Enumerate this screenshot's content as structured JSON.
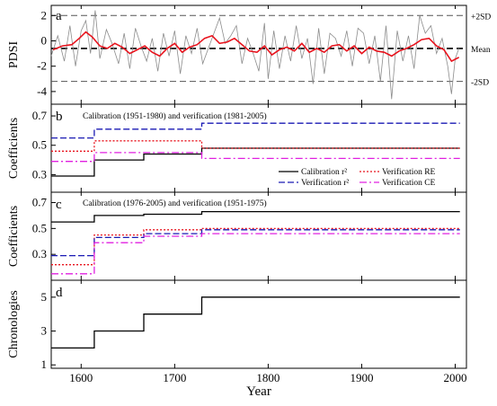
{
  "figure": {
    "xlabel": "Year",
    "x_ticks": [
      1600,
      1700,
      1800,
      1900,
      2000
    ]
  },
  "chart_data": [
    {
      "panel": "a",
      "type": "line",
      "ylabel": "PDSI",
      "ylim": [
        -5,
        2.8
      ],
      "y_ticks": [
        -4,
        -2,
        0,
        2
      ],
      "xlim": [
        1568,
        2012
      ],
      "grid": false,
      "reference_lines": [
        {
          "label": "+2SD",
          "value": 2.0
        },
        {
          "label": "Mean",
          "value": -0.6
        },
        {
          "label": "-2SD",
          "value": -3.2
        }
      ],
      "series": [
        {
          "name": "",
          "color": "#8c8c8c",
          "kind": "annual",
          "x": [
            1568,
            1575,
            1582,
            1588,
            1594,
            1600,
            1605,
            1610,
            1615,
            1620,
            1627,
            1633,
            1640,
            1646,
            1652,
            1658,
            1664,
            1670,
            1676,
            1682,
            1688,
            1694,
            1700,
            1706,
            1712,
            1718,
            1724,
            1730,
            1736,
            1742,
            1748,
            1754,
            1760,
            1766,
            1772,
            1778,
            1784,
            1790,
            1796,
            1800,
            1806,
            1812,
            1818,
            1824,
            1830,
            1836,
            1842,
            1848,
            1854,
            1860,
            1866,
            1872,
            1878,
            1884,
            1890,
            1896,
            1902,
            1908,
            1914,
            1920,
            1926,
            1932,
            1938,
            1944,
            1950,
            1956,
            1962,
            1968,
            1974,
            1980,
            1986,
            1992,
            1996,
            2000,
            2004
          ],
          "y": [
            -1.2,
            0.4,
            -1.6,
            1.2,
            -2.0,
            0.8,
            1.6,
            -1.0,
            2.4,
            -1.4,
            0.9,
            -0.2,
            -1.8,
            0.6,
            -2.2,
            1.0,
            -0.4,
            -1.6,
            0.2,
            -2.4,
            0.6,
            -1.2,
            0.8,
            -2.6,
            0.4,
            -1.0,
            1.0,
            -1.8,
            -0.6,
            0.6,
            1.8,
            -0.2,
            0.4,
            1.2,
            -1.8,
            0.2,
            -1.0,
            -2.4,
            1.4,
            -3.0,
            0.8,
            -2.2,
            0.4,
            -1.6,
            1.2,
            -1.4,
            0.2,
            -3.4,
            1.0,
            -2.6,
            0.6,
            0.2,
            -1.2,
            0.8,
            -2.0,
            1.0,
            0.6,
            -1.8,
            0.4,
            -3.2,
            1.2,
            -4.6,
            0.8,
            -1.6,
            0.4,
            -2.2,
            2.0,
            0.6,
            1.2,
            -1.0,
            0.2,
            -2.0,
            -4.2,
            -1.4,
            -0.6
          ]
        },
        {
          "name": "",
          "color": "#e8141e",
          "kind": "smoothed",
          "x": [
            1570,
            1580,
            1590,
            1598,
            1605,
            1612,
            1620,
            1628,
            1636,
            1644,
            1652,
            1660,
            1668,
            1676,
            1684,
            1692,
            1700,
            1708,
            1716,
            1724,
            1732,
            1740,
            1748,
            1756,
            1764,
            1772,
            1780,
            1788,
            1796,
            1804,
            1812,
            1820,
            1828,
            1836,
            1844,
            1852,
            1860,
            1868,
            1876,
            1884,
            1892,
            1900,
            1908,
            1916,
            1924,
            1932,
            1940,
            1948,
            1956,
            1964,
            1972,
            1980,
            1988,
            1996,
            2004
          ],
          "y": [
            -0.7,
            -0.4,
            -0.3,
            0.2,
            0.7,
            0.3,
            -0.4,
            -0.6,
            -0.2,
            -0.5,
            -1.0,
            -0.7,
            -0.4,
            -0.9,
            -1.2,
            -0.6,
            -0.2,
            -0.9,
            -0.5,
            -0.3,
            0.2,
            0.4,
            -0.2,
            -0.1,
            0.2,
            -0.3,
            -0.8,
            -0.9,
            -0.4,
            -1.1,
            -0.7,
            -0.5,
            -0.8,
            -0.2,
            -0.9,
            -0.6,
            -0.9,
            -0.4,
            -0.3,
            -0.8,
            -0.4,
            -1.0,
            -0.5,
            -0.8,
            -0.9,
            -1.2,
            -0.8,
            -0.6,
            -0.3,
            0.1,
            0.2,
            -0.4,
            -0.7,
            -1.6,
            -1.3
          ]
        }
      ]
    },
    {
      "panel": "b",
      "type": "line",
      "ylabel": "Coefficients",
      "annotation": "Calibration (1951-1980) and verification (1981-2005)",
      "ylim": [
        0.18,
        0.78
      ],
      "y_ticks": [
        0.3,
        0.5,
        0.7
      ],
      "series": [
        {
          "name": "Calibration r²",
          "color": "#000000",
          "style": "solid",
          "x": [
            1568,
            1614,
            1614,
            1667,
            1667,
            1729,
            1729,
            2005
          ],
          "y": [
            0.29,
            0.29,
            0.4,
            0.4,
            0.44,
            0.44,
            0.48,
            0.48
          ]
        },
        {
          "name": "Verification RE",
          "color": "#e8141e",
          "style": "dotted",
          "x": [
            1568,
            1614,
            1614,
            1667,
            1667,
            1729,
            1729,
            2005
          ],
          "y": [
            0.46,
            0.46,
            0.53,
            0.53,
            0.53,
            0.53,
            0.48,
            0.48
          ]
        },
        {
          "name": "Verification r²",
          "color": "#1a1ab4",
          "style": "dashed",
          "x": [
            1568,
            1614,
            1614,
            1667,
            1667,
            1729,
            1729,
            2005
          ],
          "y": [
            0.55,
            0.55,
            0.61,
            0.61,
            0.61,
            0.61,
            0.65,
            0.65
          ]
        },
        {
          "name": "Verification CE",
          "color": "#e020e0",
          "style": "dashdot",
          "x": [
            1568,
            1614,
            1614,
            1667,
            1667,
            1729,
            1729,
            2005
          ],
          "y": [
            0.39,
            0.39,
            0.45,
            0.45,
            0.45,
            0.45,
            0.41,
            0.41
          ]
        }
      ],
      "legend_position": "bottom-right"
    },
    {
      "panel": "c",
      "type": "line",
      "ylabel": "Coefficients",
      "annotation": "Calibration (1976-2005) and verification (1951-1975)",
      "ylim": [
        0.1,
        0.78
      ],
      "y_ticks": [
        0.3,
        0.5,
        0.7
      ],
      "series": [
        {
          "name": "Calibration r²",
          "color": "#000000",
          "style": "solid",
          "x": [
            1568,
            1614,
            1614,
            1667,
            1667,
            1729,
            1729,
            2005
          ],
          "y": [
            0.55,
            0.55,
            0.6,
            0.6,
            0.61,
            0.61,
            0.63,
            0.63
          ]
        },
        {
          "name": "Verification RE",
          "color": "#e8141e",
          "style": "dotted",
          "x": [
            1568,
            1614,
            1614,
            1667,
            1667,
            1729,
            1729,
            2005
          ],
          "y": [
            0.22,
            0.22,
            0.45,
            0.45,
            0.49,
            0.49,
            0.5,
            0.5
          ]
        },
        {
          "name": "Verification r²",
          "color": "#1a1ab4",
          "style": "dashed",
          "x": [
            1568,
            1614,
            1614,
            1667,
            1667,
            1729,
            1729,
            2005
          ],
          "y": [
            0.29,
            0.29,
            0.43,
            0.43,
            0.46,
            0.46,
            0.49,
            0.49
          ]
        },
        {
          "name": "Verification CE",
          "color": "#e020e0",
          "style": "dashdot",
          "x": [
            1568,
            1614,
            1614,
            1667,
            1667,
            1729,
            1729,
            2005
          ],
          "y": [
            0.15,
            0.15,
            0.39,
            0.39,
            0.44,
            0.44,
            0.46,
            0.46
          ]
        }
      ]
    },
    {
      "panel": "d",
      "type": "line",
      "ylabel": "Chronologies",
      "ylim": [
        0.8,
        6.0
      ],
      "y_ticks": [
        1,
        3,
        5
      ],
      "series": [
        {
          "name": "",
          "color": "#000000",
          "style": "solid",
          "x": [
            1568,
            1614,
            1614,
            1667,
            1667,
            1729,
            1729,
            2005
          ],
          "y": [
            2,
            2,
            3,
            3,
            4,
            4,
            5,
            5
          ]
        }
      ]
    }
  ]
}
